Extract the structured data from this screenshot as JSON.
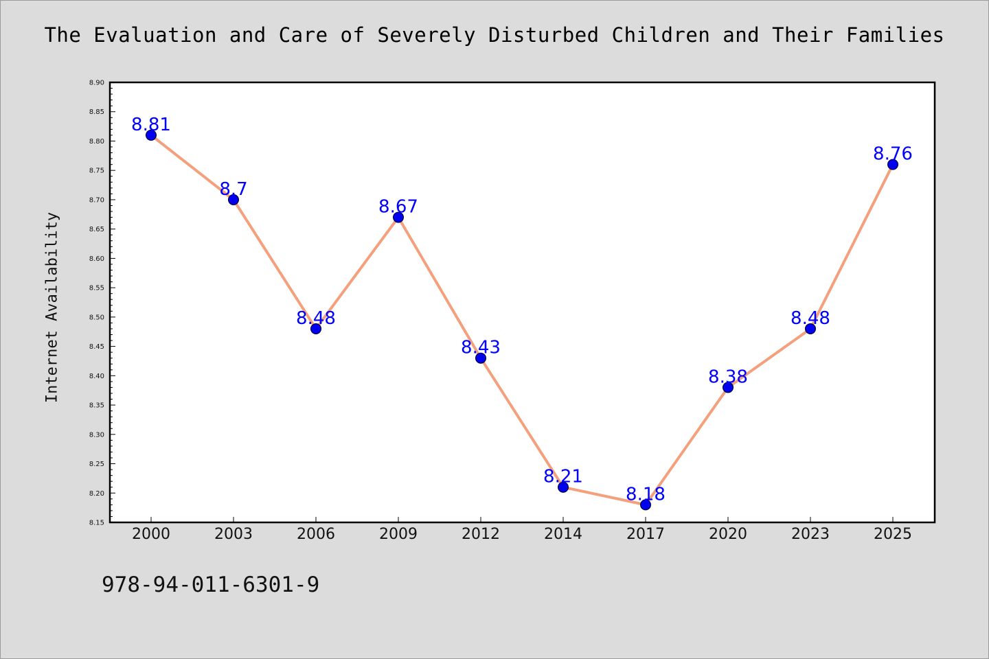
{
  "chart_data": {
    "type": "line",
    "title": "The Evaluation and Care of Severely Disturbed Children and Their Families",
    "xlabel": "",
    "ylabel": "Internet Availability",
    "categories": [
      "2000",
      "2003",
      "2006",
      "2009",
      "2012",
      "2014",
      "2017",
      "2020",
      "2023",
      "2025"
    ],
    "series": [
      {
        "values": [
          8.81,
          8.7,
          8.48,
          8.67,
          8.43,
          8.21,
          8.18,
          8.38,
          8.48,
          8.76
        ]
      }
    ],
    "data_labels": [
      "8.81",
      "8.7",
      "8.48",
      "8.67",
      "8.43",
      "8.21",
      "8.18",
      "8.38",
      "8.48",
      "8.76"
    ],
    "ylim": [
      8.15,
      8.9
    ],
    "y_ticks": [
      "8.15",
      "8.20",
      "8.25",
      "8.30",
      "8.35",
      "8.40",
      "8.45",
      "8.50",
      "8.55",
      "8.60",
      "8.65",
      "8.70",
      "8.75",
      "8.80",
      "8.85",
      "8.90"
    ],
    "grid": false,
    "legend": "none",
    "colors": {
      "line": "#f4a07c",
      "marker": "#0000ee",
      "label": "#0000ff",
      "background": "#dcdcdc",
      "plot_area": "#ffffff"
    }
  },
  "footer": {
    "isbn": "978-94-011-6301-9"
  }
}
